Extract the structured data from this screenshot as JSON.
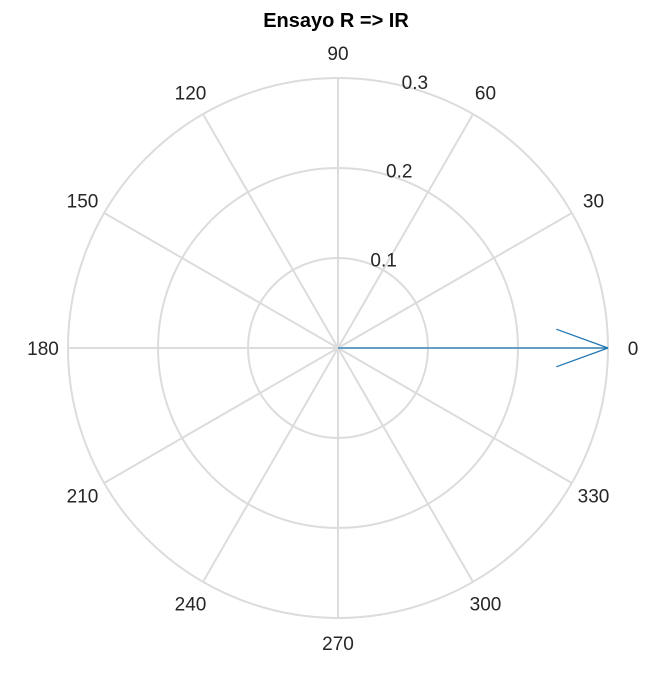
{
  "chart_data": {
    "type": "compass",
    "title": "Ensayo R => IR",
    "theta_ticks": [
      "0",
      "30",
      "60",
      "90",
      "120",
      "150",
      "180",
      "210",
      "240",
      "270",
      "300",
      "330"
    ],
    "r_ticks": [
      "0.1",
      "0.2",
      "0.3"
    ],
    "rlim": [
      0,
      0.3
    ],
    "grid": true,
    "series": [
      {
        "angle_deg": 0,
        "magnitude": 0.3,
        "color": "#1f77b4"
      }
    ]
  }
}
